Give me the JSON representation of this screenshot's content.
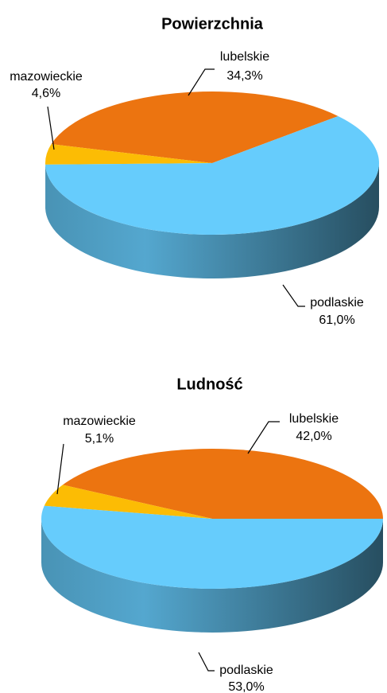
{
  "chart_data": [
    {
      "type": "pie",
      "title": "Powierzchnia",
      "categories": [
        "lubelskie",
        "mazowieckie",
        "podlaskie"
      ],
      "values": [
        34.3,
        4.6,
        61.0
      ],
      "value_labels": [
        "34,3%",
        "4,6%",
        "61,0%"
      ],
      "colors": [
        "#ec7410",
        "#fcbc04",
        "#66ccfc"
      ]
    },
    {
      "type": "pie",
      "title": "Ludność",
      "categories": [
        "lubelskie",
        "mazowieckie",
        "podlaskie"
      ],
      "values": [
        42.0,
        5.1,
        53.0
      ],
      "value_labels": [
        "42,0%",
        "5,1%",
        "53,0%"
      ],
      "colors": [
        "#ec7410",
        "#fcbc04",
        "#66ccfc"
      ]
    }
  ]
}
